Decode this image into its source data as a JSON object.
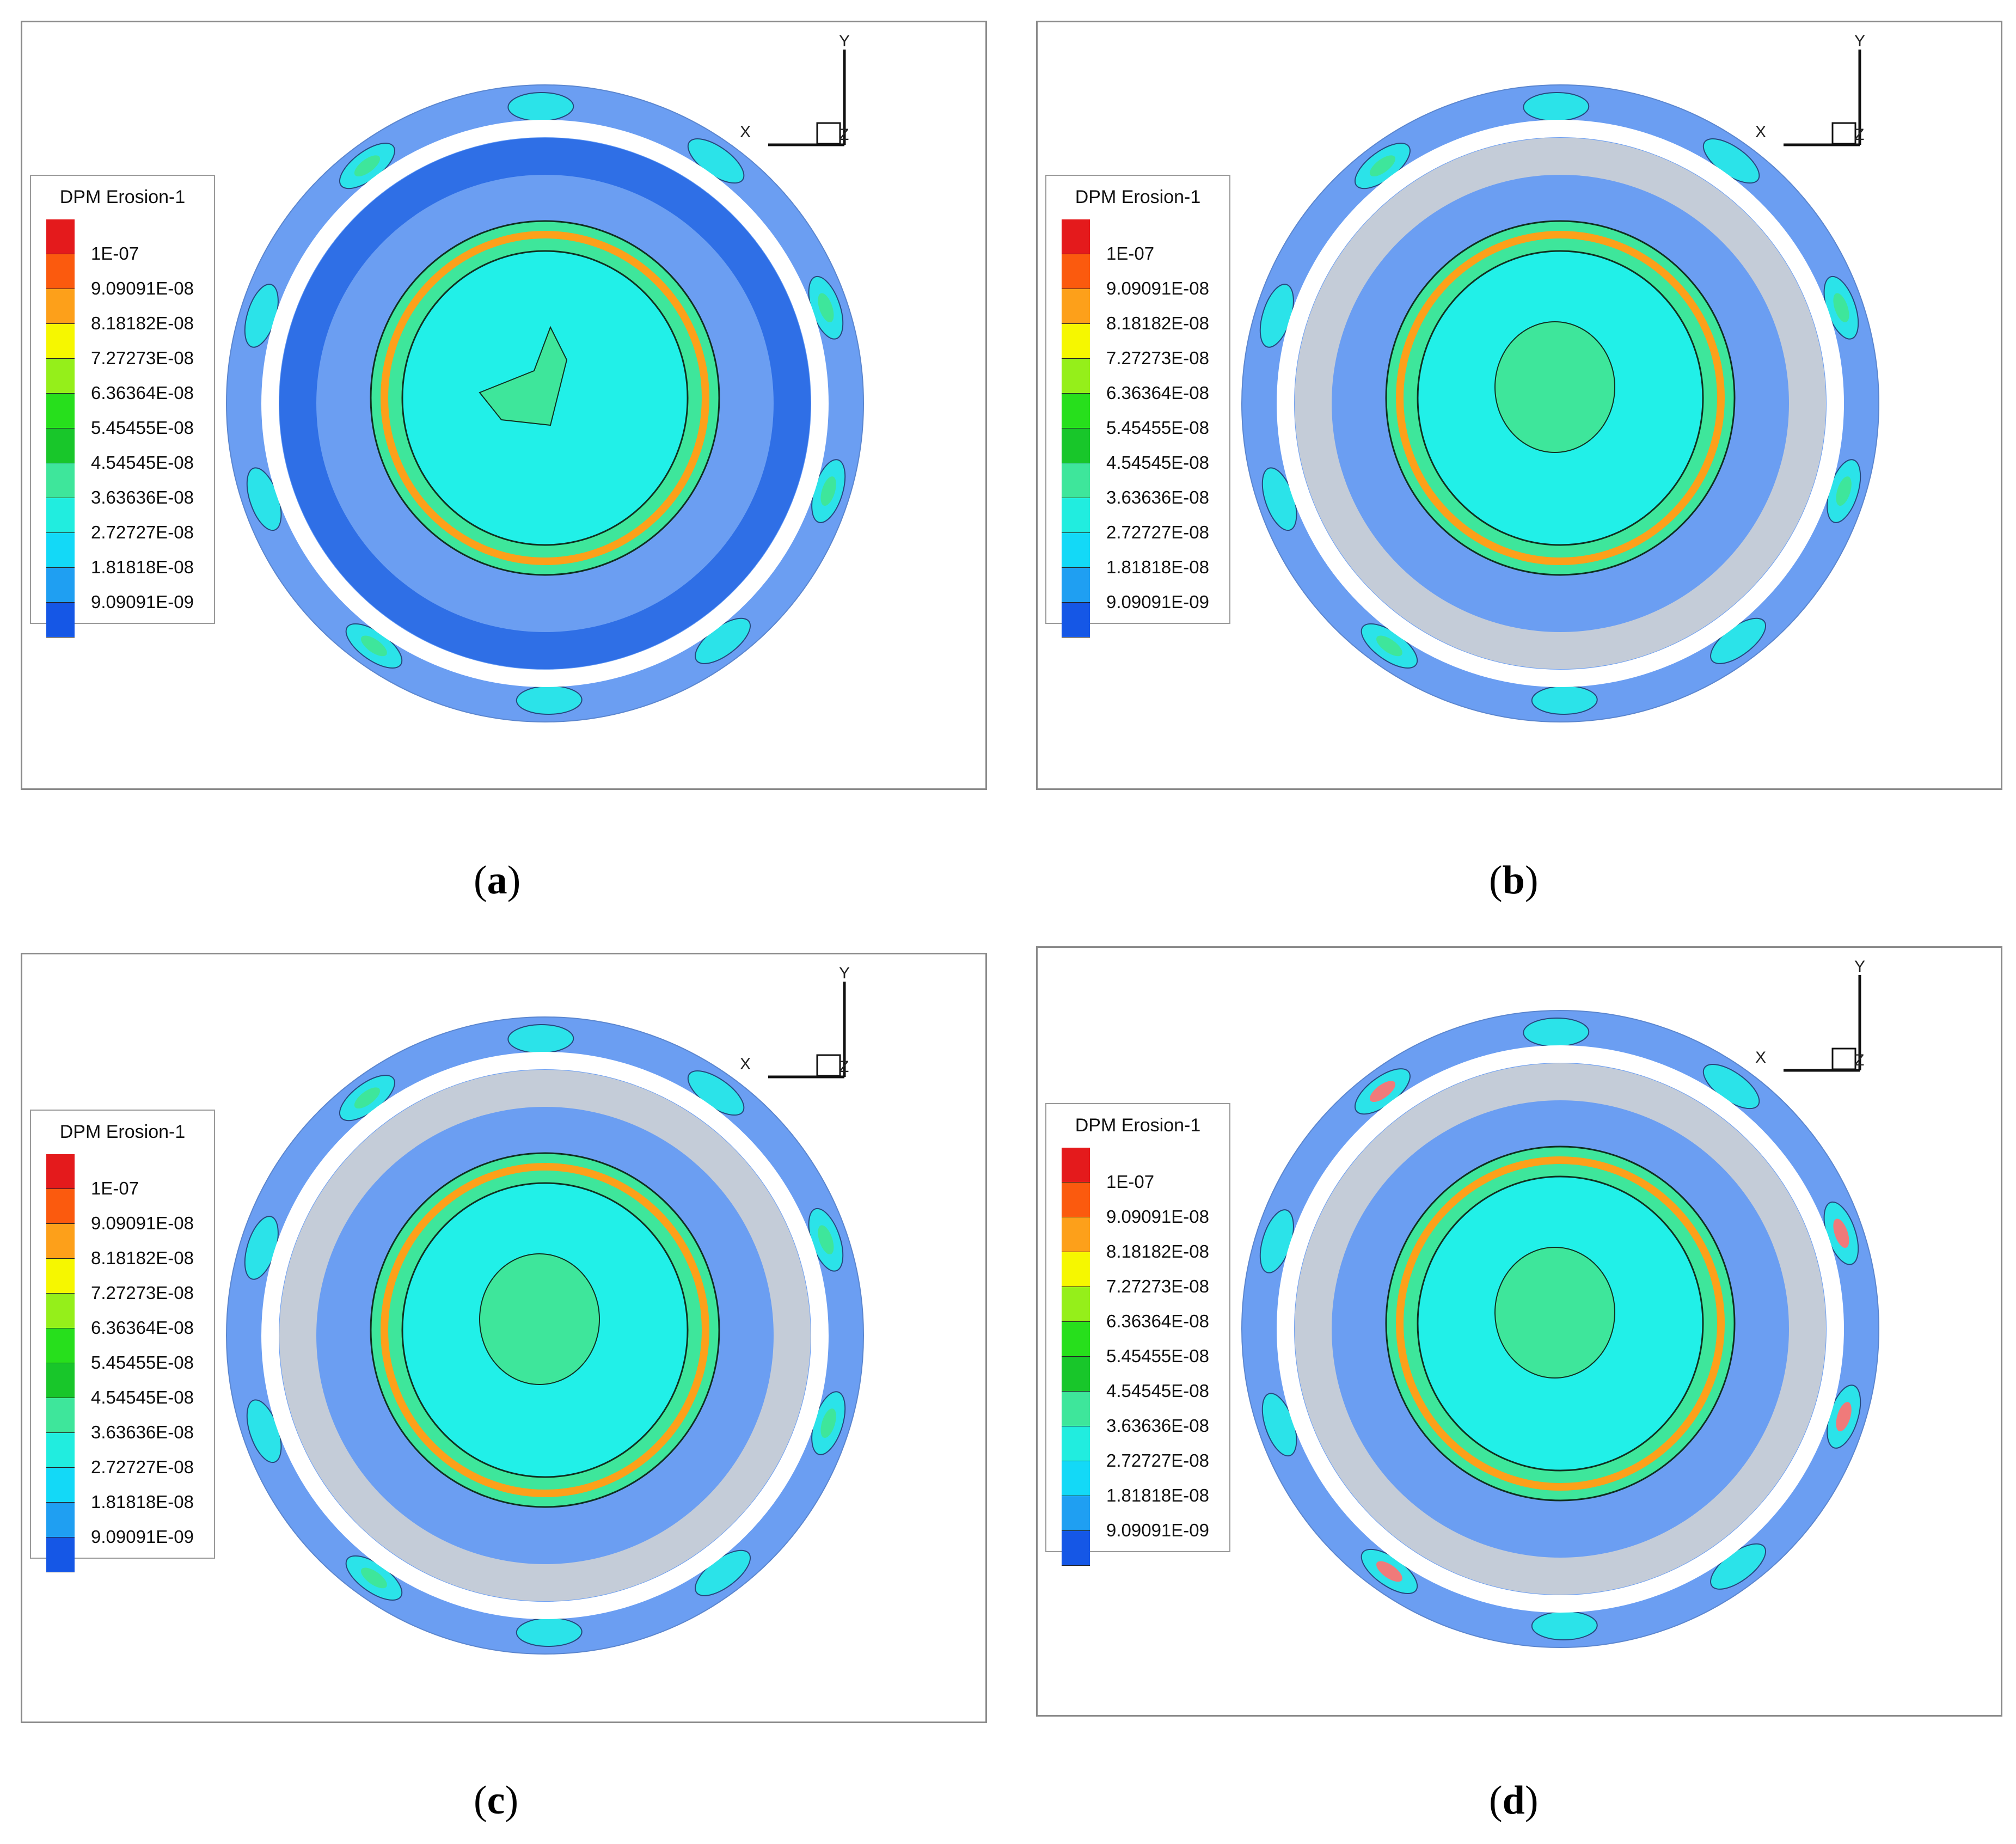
{
  "legend": {
    "title": "DPM Erosion-1",
    "levels": [
      {
        "label": "1E-07",
        "color": "#e41a1c"
      },
      {
        "label": "9.09091E-08",
        "color": "#fb5a0e"
      },
      {
        "label": "8.18182E-08",
        "color": "#fda01a"
      },
      {
        "label": "7.27273E-08",
        "color": "#f6f700"
      },
      {
        "label": "6.36364E-08",
        "color": "#95ef1a"
      },
      {
        "label": "5.45455E-08",
        "color": "#27df1c"
      },
      {
        "label": "4.54545E-08",
        "color": "#18c62a"
      },
      {
        "label": "3.63636E-08",
        "color": "#3ee69b"
      },
      {
        "label": "2.72727E-08",
        "color": "#21eddf"
      },
      {
        "label": "1.81818E-08",
        "color": "#13d9f7"
      },
      {
        "label": "9.09091E-09",
        "color": "#1f9ff2"
      },
      {
        "label": "",
        "color": "#1557e6"
      }
    ]
  },
  "axes": {
    "y": "Y",
    "x": "X",
    "z": "Z"
  },
  "panels": [
    {
      "caption_letter": "a"
    },
    {
      "caption_letter": "b"
    },
    {
      "caption_letter": "c"
    },
    {
      "caption_letter": "d"
    }
  ],
  "colors": {
    "plate": "#6b9ef2",
    "outer_ring": "#6b9ef2",
    "inner_dark": "#2f6fe6",
    "gray_ring": "#c4ccd8",
    "center": "#21f0e8",
    "green_band": "#3ee69b",
    "hot_band": "#fda01a",
    "hot_spot": "#f07a7a"
  }
}
